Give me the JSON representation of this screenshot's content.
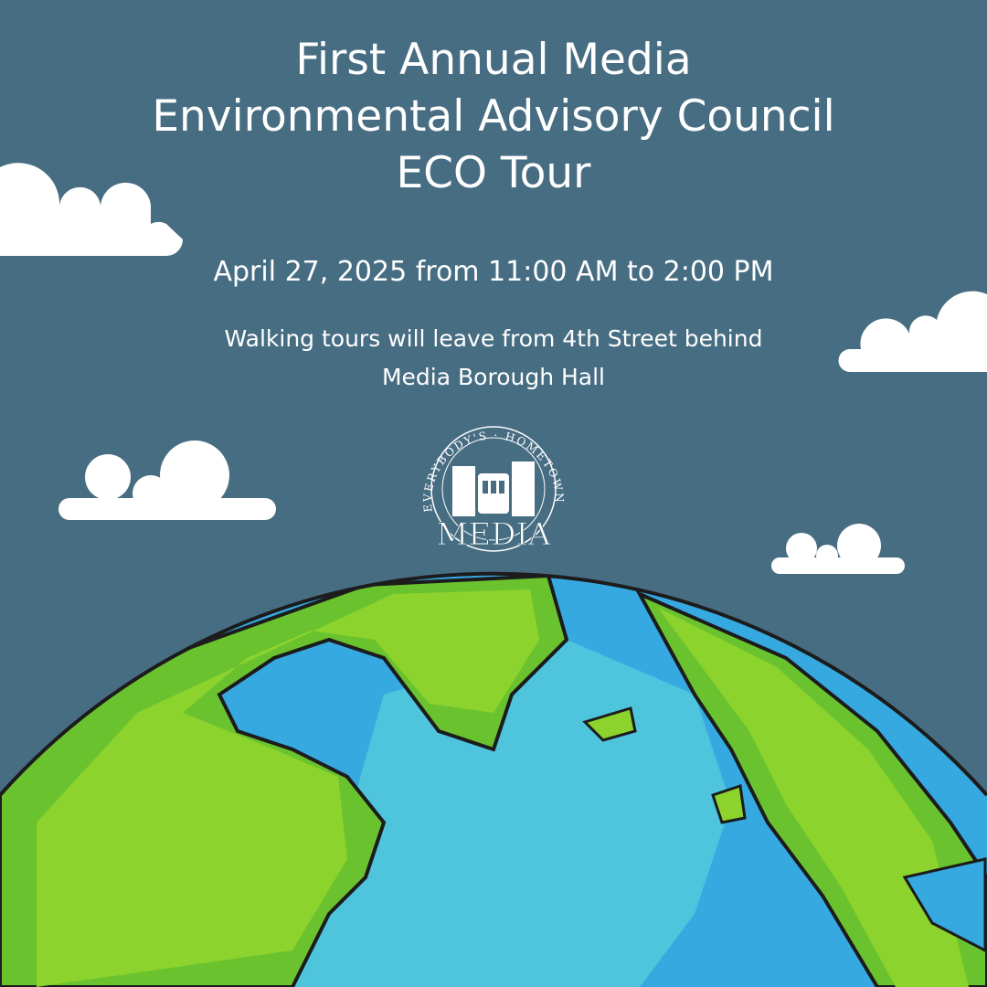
{
  "title": {
    "line1": "First Annual Media",
    "line2": "Environmental Advisory Council",
    "line3": "ECO Tour"
  },
  "date": "April 27, 2025 from 11:00 AM to 2:00 PM",
  "location": {
    "line1": "Walking tours will leave from 4th Street behind",
    "line2": "Media Borough Hall"
  },
  "logo": {
    "arc_text": "EVERYBODY'S · HOMETOWN",
    "word": "MEDIA"
  },
  "colors": {
    "background": "#476d82",
    "ocean": "#4fc4dd",
    "shallow": "#36a9e1",
    "land": "#8cd32e",
    "land_edge": "#6ac32e",
    "outline": "#1c1c1c",
    "cloud": "#ffffff"
  }
}
